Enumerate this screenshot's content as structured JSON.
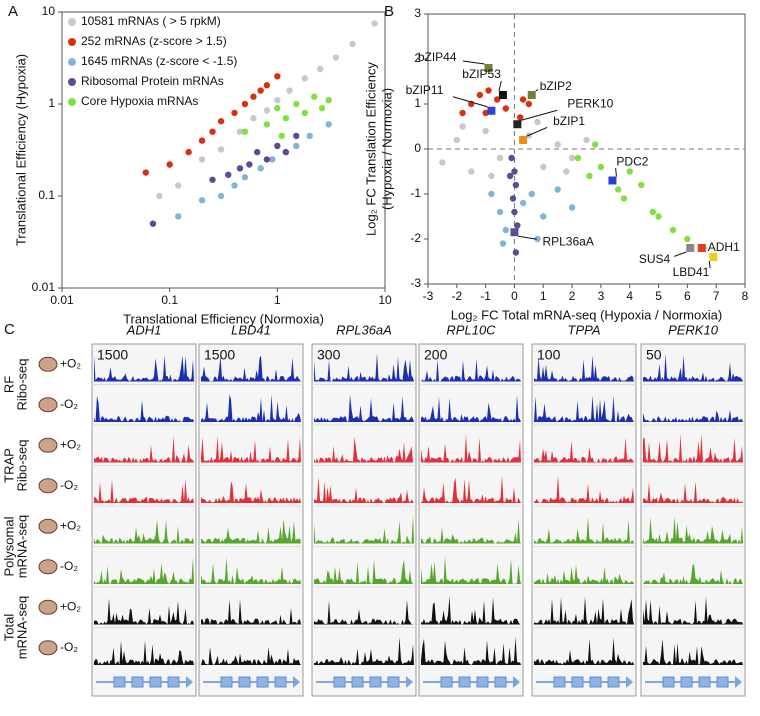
{
  "chart_data": [
    {
      "type": "scatter",
      "panel": "A",
      "xscale": "log",
      "yscale": "log",
      "xlabel": "Translational Efficiency (Normoxia)",
      "ylabel": [
        "Translational Efficiency (Hypoxia)"
      ],
      "xlim": [
        0.01,
        10
      ],
      "ylim": [
        0.01,
        10
      ],
      "xticks": [
        0.01,
        0.1,
        1,
        10
      ],
      "yticks": [
        0.01,
        0.1,
        1,
        10
      ],
      "legend": "top-left",
      "series": [
        {
          "name": "10581 mRNAs ( > 5 rpkM)",
          "color": "#c8c8c8",
          "x": [
            0.08,
            0.12,
            0.2,
            0.3,
            0.45,
            0.6,
            0.8,
            1.0,
            1.3,
            1.8,
            2.5,
            3.5,
            5,
            8
          ],
          "values": [
            0.1,
            0.13,
            0.25,
            0.32,
            0.5,
            0.7,
            0.85,
            1.1,
            1.4,
            1.9,
            2.4,
            3.2,
            4.5,
            7.5
          ]
        },
        {
          "name": "252 mRNAs (z-score > 1.5)",
          "color": "#d9300f",
          "x": [
            0.06,
            0.1,
            0.15,
            0.2,
            0.25,
            0.3,
            0.4,
            0.5,
            0.6,
            0.7,
            0.8,
            1.0
          ],
          "values": [
            0.18,
            0.22,
            0.3,
            0.4,
            0.5,
            0.65,
            0.8,
            1.0,
            1.2,
            1.4,
            1.6,
            2.0
          ]
        },
        {
          "name": "1645 mRNAs (z-score < -1.5)",
          "color": "#7fb6d8",
          "x": [
            0.12,
            0.2,
            0.3,
            0.4,
            0.5,
            0.7,
            0.9,
            1.2,
            1.5,
            2.0,
            3.0
          ],
          "values": [
            0.06,
            0.09,
            0.1,
            0.13,
            0.16,
            0.2,
            0.25,
            0.3,
            0.35,
            0.45,
            0.6
          ]
        },
        {
          "name": "Ribosomal Protein mRNAs",
          "color": "#5b4c96",
          "x": [
            0.07,
            0.25,
            0.35,
            0.45,
            0.55,
            0.65,
            0.8,
            1.0,
            1.2,
            1.5
          ],
          "values": [
            0.05,
            0.15,
            0.17,
            0.2,
            0.22,
            0.3,
            0.25,
            0.35,
            0.3,
            0.45
          ]
        },
        {
          "name": "Core Hypoxia mRNAs",
          "color": "#7fe040",
          "x": [
            0.5,
            0.8,
            1.0,
            1.2,
            1.5,
            1.8,
            2.2,
            2.6,
            3.0,
            1.1
          ],
          "values": [
            0.5,
            0.6,
            0.9,
            0.7,
            1.0,
            0.8,
            1.2,
            0.9,
            1.1,
            0.45
          ]
        }
      ]
    },
    {
      "type": "scatter",
      "panel": "B",
      "xlabel": "Log₂ FC Total  mRNA-seq  (Hypoxia / Normoxia)",
      "ylabel": [
        "Log₂ FC Translation Efficiency",
        "(Hypoxia / Normoxia)"
      ],
      "xlim": [
        -3,
        8
      ],
      "ylim": [
        -3,
        3
      ],
      "xticks": [
        -3,
        -2,
        -1,
        0,
        1,
        2,
        3,
        4,
        5,
        6,
        7,
        8
      ],
      "yticks": [
        -3,
        -2,
        -1,
        0,
        1,
        2,
        3
      ],
      "series": [
        {
          "color": "#c8c8c8",
          "x": [
            -2.5,
            -2,
            -1.5,
            -1,
            -0.5,
            0.5,
            1,
            1.5,
            2,
            2.5,
            -1.8,
            -0.8,
            0.8,
            1.8
          ],
          "values": [
            -0.3,
            0.2,
            -0.5,
            0.4,
            -0.2,
            0.3,
            -0.4,
            0.1,
            -0.2,
            0.2,
            0.5,
            -0.6,
            0.6,
            -0.5
          ]
        },
        {
          "color": "#d9300f",
          "x": [
            -1.5,
            -1.2,
            -1,
            -0.6,
            -0.3,
            0.2,
            0.5,
            -1.8,
            -0.9,
            0.3
          ],
          "values": [
            1.0,
            1.2,
            0.8,
            1.1,
            0.9,
            0.7,
            1.0,
            0.8,
            1.3,
            1.1
          ]
        },
        {
          "color": "#7fb6d8",
          "x": [
            -0.8,
            -0.5,
            -0.3,
            0.3,
            0.6,
            1.0,
            1.5,
            2.0,
            -0.4,
            0.8
          ],
          "values": [
            -1.0,
            -1.4,
            -1.8,
            -1.2,
            -1.0,
            -1.5,
            -0.9,
            -1.3,
            -2.1,
            -2.0
          ]
        },
        {
          "color": "#5b4c96",
          "x": [
            -0.1,
            0,
            0.05,
            -0.05,
            0,
            0.1,
            -0.15,
            0.05
          ],
          "values": [
            -0.2,
            -0.5,
            -0.8,
            -1.1,
            -1.4,
            -1.7,
            -0.6,
            -2.3
          ]
        },
        {
          "color": "#7fe040",
          "x": [
            2.2,
            2.6,
            3.0,
            3.6,
            4.0,
            4.4,
            5.0,
            5.5,
            6.0,
            2.8,
            3.8,
            4.8
          ],
          "values": [
            -0.2,
            -0.6,
            -0.4,
            -0.9,
            -0.5,
            -0.8,
            -1.5,
            -1.8,
            -2.0,
            0.1,
            -1.1,
            -1.4
          ]
        }
      ],
      "annotations": [
        {
          "text": "bZIP44",
          "x": -0.9,
          "y": 1.8,
          "color": "#7a7a3a"
        },
        {
          "text": "bZIP11",
          "x": -0.8,
          "y": 0.85,
          "color": "#2f3fd0"
        },
        {
          "text": "bZIP53",
          "x": -0.4,
          "y": 1.2,
          "color": "#111111"
        },
        {
          "text": "bZIP2",
          "x": 0.6,
          "y": 1.2,
          "color": "#7a7a3a"
        },
        {
          "text": "PERK10",
          "x": 0.1,
          "y": 0.55,
          "color": "#222222"
        },
        {
          "text": "bZIP1",
          "x": 0.3,
          "y": 0.2,
          "color": "#f08a1a"
        },
        {
          "text": "PDC2",
          "x": 3.4,
          "y": -0.7,
          "color": "#2f3fd0"
        },
        {
          "text": "RPL36aA",
          "x": 0.0,
          "y": -1.85,
          "color": "#5b4c96"
        },
        {
          "text": "SUS4",
          "x": 6.1,
          "y": -2.2,
          "color": "#888888"
        },
        {
          "text": "ADH1",
          "x": 6.5,
          "y": -2.2,
          "color": "#e0401a"
        },
        {
          "text": "LBD41",
          "x": 6.9,
          "y": -2.4,
          "color": "#e8d020"
        }
      ]
    }
  ],
  "panel_c": {
    "label": "C",
    "genes": [
      {
        "name": "ADH1",
        "scale": 1500
      },
      {
        "name": "LBD41",
        "scale": 1500
      },
      {
        "name": "RPL36aA",
        "scale": 300
      },
      {
        "name": "RPL10C",
        "scale": 200
      },
      {
        "name": "TPPA",
        "scale": 100
      },
      {
        "name": "PERK10",
        "scale": 50
      }
    ],
    "groups": [
      {
        "title": [
          "RF",
          "Ribo-seq"
        ],
        "color": "#1b2fb0",
        "conditions": [
          "+O₂",
          "-O₂"
        ]
      },
      {
        "title": [
          "TRAP",
          "Ribo-seq"
        ],
        "color": "#e0303a",
        "conditions": [
          "+O₂",
          "-O₂"
        ]
      },
      {
        "title": [
          "Polysomal",
          "mRNA-seq"
        ],
        "color": "#55a62a",
        "conditions": [
          "+O₂",
          "-O₂"
        ]
      },
      {
        "title": [
          "Total",
          "mRNA-seq"
        ],
        "color": "#111111",
        "conditions": [
          "+O₂",
          "-O₂"
        ]
      }
    ]
  }
}
